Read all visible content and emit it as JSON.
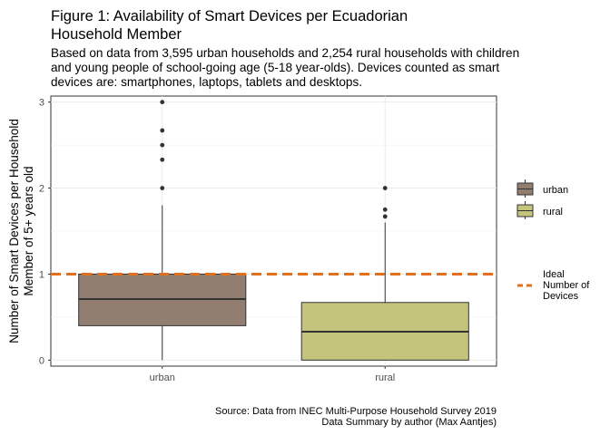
{
  "title": "Figure 1: Availability of Smart Devices per Ecuadorian Household Member",
  "subtitle": "Based on data from 3,595 urban households and 2,254 rural households with children and young people of school-going age (5-18 year-olds). Devices counted as smart devices are: smartphones, laptops, tablets and desktops.",
  "caption_line1": "Source: Data from INEC Multi-Purpose Household Survey 2019",
  "caption_line2": "Data Summary by author (Max Aantjes)",
  "chart_data": {
    "type": "boxplot",
    "ylabel_line1": "Number of Smart Devices per Household",
    "ylabel_line2": "Member of 5+ years old",
    "xlabel": "",
    "categories": [
      "urban",
      "rural"
    ],
    "ylim": [
      -0.07,
      3.07
    ],
    "yticks": [
      0,
      1,
      2,
      3
    ],
    "grid": true,
    "boxes": [
      {
        "name": "urban",
        "fill": "#927d71",
        "whisker_low": 0,
        "q1": 0.4,
        "median": 0.71,
        "q3": 1.0,
        "whisker_high": 1.8,
        "outliers": [
          2.0,
          2.33,
          2.5,
          2.67,
          3.0
        ]
      },
      {
        "name": "rural",
        "fill": "#c4c47c",
        "whisker_low": 0,
        "q1": 0,
        "median": 0.33,
        "q3": 0.67,
        "whisker_high": 1.6,
        "outliers": [
          1.67,
          1.75,
          2.0
        ]
      }
    ],
    "reference_line": {
      "value": 1,
      "label": "Ideal Number of Devices",
      "color": "#e07020"
    },
    "legend": {
      "placement": "right",
      "entries": [
        {
          "label": "urban",
          "fill": "#927d71"
        },
        {
          "label": "rural",
          "fill": "#c4c47c"
        }
      ],
      "line_label_lines": [
        "Ideal",
        "Number of",
        "Devices"
      ]
    }
  }
}
